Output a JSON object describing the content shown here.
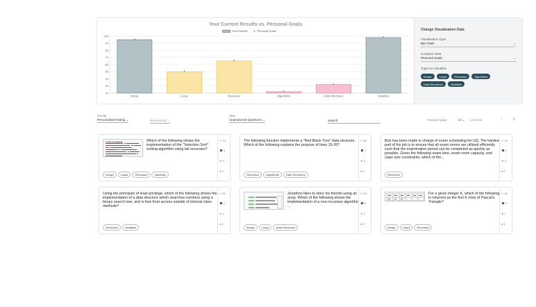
{
  "chart_data": {
    "type": "bar",
    "title": "Your Current Results vs. Personal Goals",
    "categories": [
      "Arrays",
      "Loops",
      "Recursion",
      "Algorithms",
      "Data Structures",
      "Variables"
    ],
    "series": [
      {
        "name": "Your Results",
        "values": [
          95,
          50,
          65,
          22,
          32,
          98
        ]
      },
      {
        "name": "Personal Goals",
        "values": [
          96,
          51,
          66,
          23,
          33,
          99
        ]
      }
    ],
    "bar_colors": [
      "#b3c2c7",
      "#fbe5a6",
      "#fbe5a6",
      "#f8bfd0",
      "#f8bfd0",
      "#b3c2c7"
    ],
    "bar_borders": [
      "#6f8e98",
      "#e8c561",
      "#e8c561",
      "#e6849f",
      "#e6849f",
      "#6f8e98"
    ],
    "ylim": [
      20,
      100
    ],
    "yticks": [
      20,
      30,
      40,
      50,
      60,
      70,
      80,
      90,
      100
    ],
    "grid": true,
    "legend": "top-center"
  },
  "sidebar": {
    "title": "Change Visualisation Data",
    "vis_type_label": "Visualisation Type",
    "vis_type_value": "Bar Chart",
    "compare_label": "Compare Data",
    "compare_value": "Personal Goals",
    "topics_label": "Topics to Visualise",
    "topics": [
      "Arrays",
      "Loops",
      "Recursion",
      "Algorithms",
      "Data Structures",
      "Variables"
    ]
  },
  "controls": {
    "sort_label": "Sort By",
    "sort_value": "Personalised Rating",
    "order_value": "Descending",
    "filter_label": "Filter",
    "filter_value": "Unanswered Questions",
    "search_placeholder": "Search",
    "rows_label": "Rows per page:",
    "rows_value": "25",
    "range": "1-25 of 83"
  },
  "icons": {
    "reply": "reply-icon",
    "cap": "graduation-cap-icon",
    "star": "star-icon",
    "user": "user-icon"
  },
  "cards": [
    {
      "text": "Which of the following shows the implementation of the \"Selection Sort\" sorting algorithm using tail recursion?",
      "has_image": true,
      "stats": [
        "74",
        "3",
        "0",
        "9"
      ],
      "tags": [
        "Arrays",
        "Loops",
        "Recursion",
        "Variables"
      ]
    },
    {
      "text": "The following function implements a \"Red Black Tree\" data structure. Which of the following explains the purpose of lines 15-20?",
      "has_image": false,
      "stats": [
        "66",
        "1",
        "0",
        "5"
      ],
      "tags": [
        "Recursion",
        "Algorithms",
        "Data Structures"
      ]
    },
    {
      "text": "Bob has been made in charge of exam scheduling for UQ. The hardest part of his job is to ensure that all exam rooms are utilised efficiently such that the examination period can be completed as quickly as possible. Given the following exam time, exam room capacity, and class size constraints, which of the...",
      "has_image": false,
      "stats": [
        "76",
        "2",
        "4",
        "0"
      ],
      "tags": [
        "Recursion"
      ]
    },
    {
      "text": "Using the principals of least privilege, which of the following shows the implementation of a data structure which searches numbers using a binary search tree, and is free from access outside of internal class methods?",
      "has_image": false,
      "stats": [
        "82",
        "1",
        "1",
        "4"
      ],
      "tags": [
        "Recursion",
        "Variables"
      ]
    },
    {
      "text": "Jonathon likes to store his friends using an array. Which of the following shows the implementation of a non-recursive algorithm ...",
      "has_image": true,
      "stats": [
        "25",
        "4",
        "1",
        "0"
      ],
      "tags": [
        "Arrays",
        "Loops",
        "Data Structures"
      ]
    },
    {
      "text": "For a given integer K, which of the following is returned as the first K rows of Pascal's Triangle?",
      "has_image": true,
      "stats": [
        "36",
        "0",
        "1",
        "5"
      ],
      "tags": [
        "Arrays",
        "Loops",
        "Recursion"
      ]
    }
  ]
}
